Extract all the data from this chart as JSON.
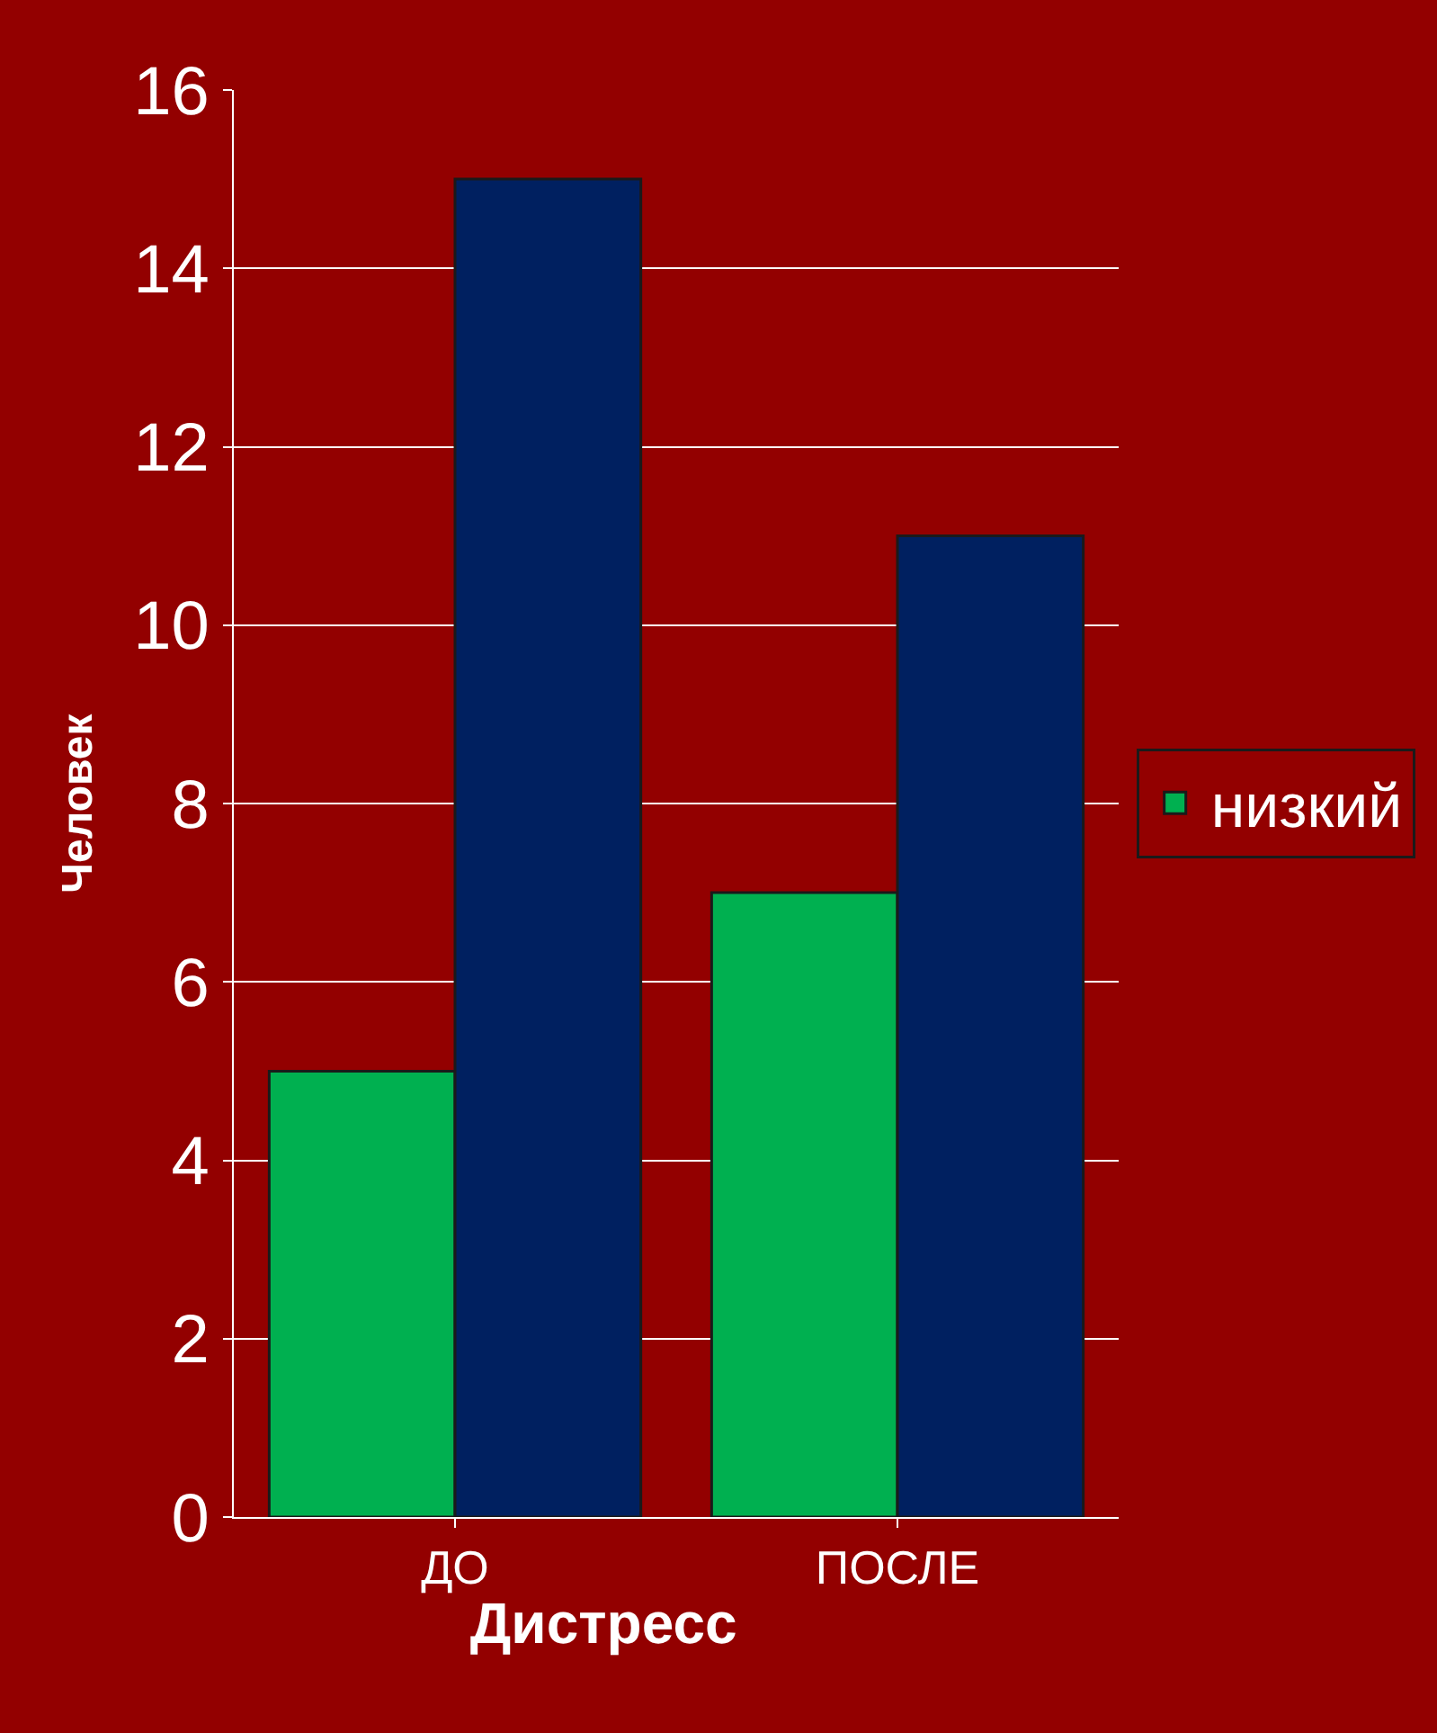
{
  "chart_data": {
    "type": "bar",
    "title": "Дистресс",
    "ylabel": "Человек",
    "categories": [
      "ДО",
      "ПОСЛЕ"
    ],
    "series": [
      {
        "name": "низкий",
        "color": "#00b050",
        "values": [
          5,
          7
        ]
      },
      {
        "color": "#002060",
        "values": [
          15,
          11
        ]
      }
    ],
    "ylim": [
      0,
      16
    ],
    "yticks": [
      0,
      2,
      4,
      6,
      8,
      10,
      12,
      14,
      16
    ],
    "grid": "y",
    "legend": "right"
  }
}
